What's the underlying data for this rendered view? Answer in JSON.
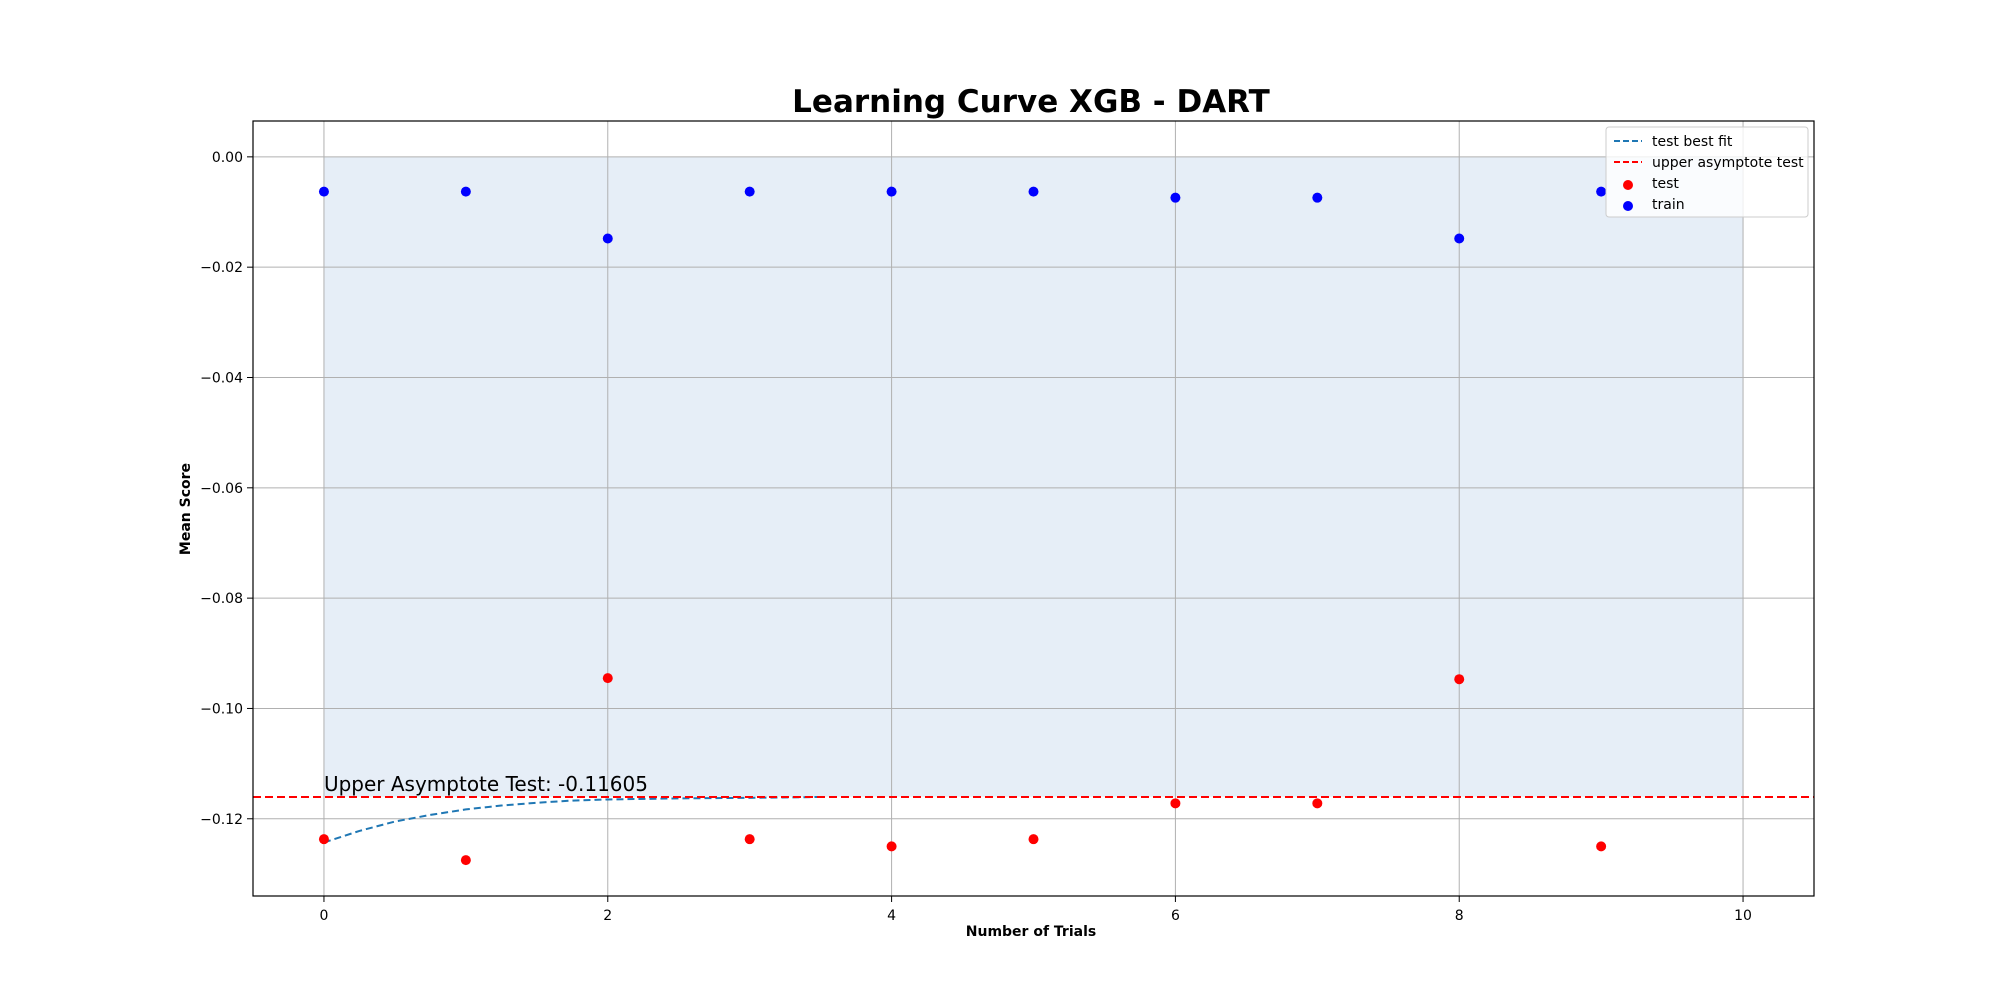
{
  "chart_data": {
    "type": "scatter",
    "title": "Learning Curve XGB - DART",
    "xlabel": "Number of Trials",
    "ylabel": "Mean Score",
    "xlim": [
      -0.5,
      10.5
    ],
    "ylim": [
      -0.134,
      0.0065
    ],
    "x_ticks": [
      0,
      2,
      4,
      6,
      8,
      10
    ],
    "y_ticks": [
      0.0,
      -0.02,
      -0.04,
      -0.06,
      -0.08,
      -0.1,
      -0.12
    ],
    "x_tick_labels": [
      "0",
      "2",
      "4",
      "6",
      "8",
      "10"
    ],
    "y_tick_labels": [
      "0.00",
      "−0.02",
      "−0.04",
      "−0.06",
      "−0.08",
      "−0.10",
      "−0.12"
    ],
    "grid": true,
    "legend_position": "top-right",
    "shaded_region": {
      "x": [
        0,
        10
      ],
      "y": [
        -0.116,
        0.0
      ],
      "color": "#e6eef7"
    },
    "series": [
      {
        "name": "test best fit",
        "kind": "line",
        "style": "dashed",
        "color": "#1f77b4",
        "x": [
          0,
          0.25,
          0.5,
          0.75,
          1.0,
          1.25,
          1.5,
          1.75,
          2.0,
          2.5,
          3.0,
          3.5
        ],
        "values": [
          -0.1243,
          -0.1222,
          -0.1205,
          -0.1193,
          -0.1183,
          -0.1176,
          -0.1171,
          -0.1167,
          -0.1165,
          -0.1163,
          -0.1162,
          -0.11605
        ]
      },
      {
        "name": "upper asymptote test",
        "kind": "hline",
        "style": "dashed",
        "color": "#ff0000",
        "value": -0.11605
      },
      {
        "name": "test",
        "kind": "scatter",
        "color": "#ff0000",
        "x": [
          0,
          1,
          2,
          3,
          4,
          5,
          6,
          7,
          8,
          9
        ],
        "values": [
          -0.1237,
          -0.1275,
          -0.0945,
          -0.1237,
          -0.125,
          -0.1237,
          -0.1172,
          -0.1172,
          -0.0947,
          -0.125
        ]
      },
      {
        "name": "train",
        "kind": "scatter",
        "color": "#0000ff",
        "x": [
          0,
          1,
          2,
          3,
          4,
          5,
          6,
          7,
          8,
          9
        ],
        "values": [
          -0.0063,
          -0.0063,
          -0.0148,
          -0.0063,
          -0.0063,
          -0.0063,
          -0.0074,
          -0.0074,
          -0.0148,
          -0.0063
        ]
      }
    ],
    "annotations": [
      {
        "text": "Upper Asymptote Test: -0.11605",
        "x": 0,
        "y": -0.11605
      }
    ]
  }
}
